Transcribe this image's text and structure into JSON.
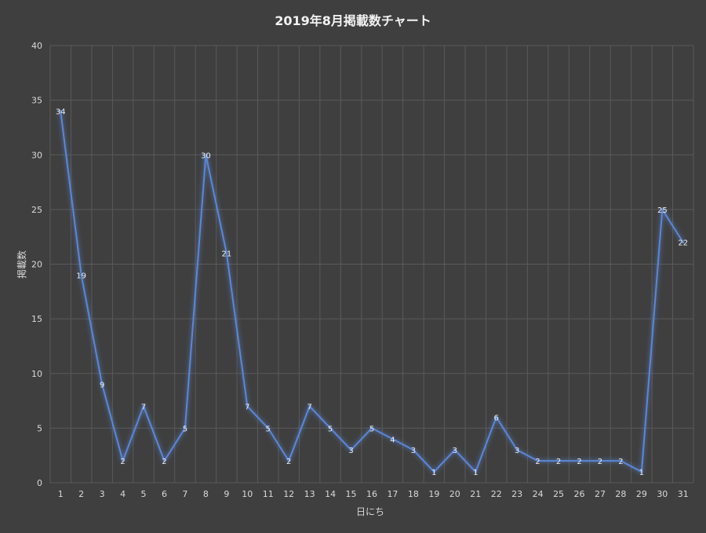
{
  "chart_data": {
    "type": "line",
    "title": "2019年8月掲載数チャート",
    "xlabel": "日にち",
    "ylabel": "掲載数",
    "ylim": [
      0,
      40
    ],
    "yticks": [
      0,
      5,
      10,
      15,
      20,
      25,
      30,
      35,
      40
    ],
    "categories": [
      "1",
      "2",
      "3",
      "4",
      "5",
      "6",
      "7",
      "8",
      "9",
      "10",
      "11",
      "12",
      "13",
      "14",
      "15",
      "16",
      "17",
      "18",
      "19",
      "20",
      "21",
      "22",
      "23",
      "24",
      "25",
      "26",
      "27",
      "28",
      "29",
      "30",
      "31"
    ],
    "values": [
      34,
      19,
      9,
      2,
      7,
      2,
      5,
      30,
      21,
      7,
      5,
      2,
      7,
      5,
      3,
      5,
      4,
      3,
      1,
      3,
      1,
      6,
      3,
      2,
      2,
      2,
      2,
      2,
      1,
      25,
      22
    ],
    "grid": true,
    "legend": "none",
    "colors": {
      "background": "#3f3f3f",
      "line": "#5b86d6",
      "grid": "#5a5a5a"
    }
  }
}
